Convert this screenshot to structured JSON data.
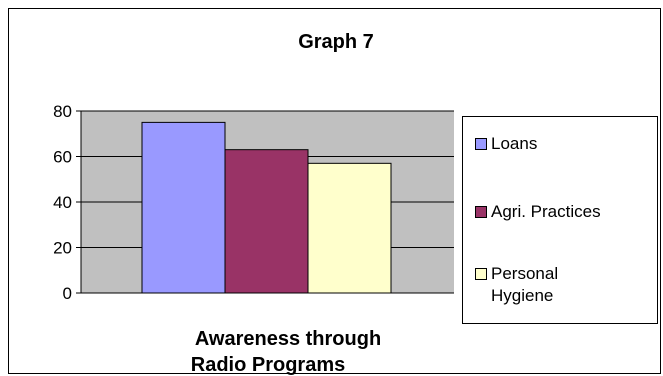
{
  "chart_data": {
    "type": "bar",
    "title": "Graph 7",
    "xlabel": "Awareness through Radio Programs",
    "ylabel": "",
    "ylim": [
      0,
      80
    ],
    "yticks": [
      0,
      20,
      40,
      60,
      80
    ],
    "grid": true,
    "legend_position": "right",
    "categories": [
      "Awareness through Radio Programs"
    ],
    "series": [
      {
        "name": "Loans",
        "values": [
          75
        ],
        "color": "#9999ff"
      },
      {
        "name": "Agri. Practices",
        "values": [
          63
        ],
        "color": "#993366"
      },
      {
        "name": "Personal Hygiene",
        "values": [
          57
        ],
        "color": "#ffffcc"
      }
    ],
    "plot_background": "#c0c0c0"
  },
  "xlabel_lines": [
    "Awareness through",
    "Radio Programs"
  ],
  "legend_lines": [
    [
      "Loans"
    ],
    [
      "Agri. Practices"
    ],
    [
      "Personal",
      "Hygiene"
    ]
  ]
}
